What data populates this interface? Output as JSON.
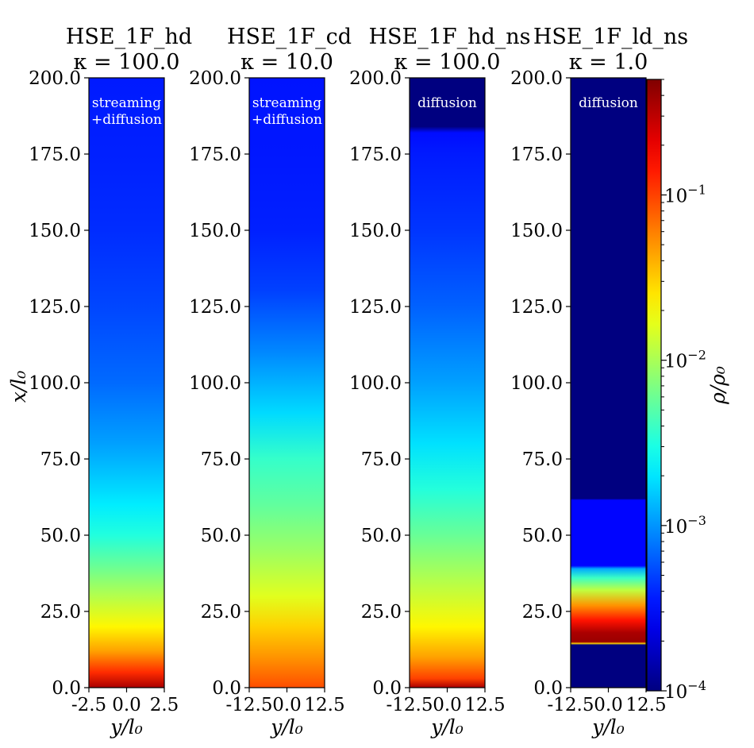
{
  "chart_data": {
    "type": "heatmap",
    "colormap": "jet",
    "panels": [
      {
        "title": "HSE_1F_hd",
        "subtitle": "κ = 100.0",
        "annotation": [
          "streaming",
          "+diffusion"
        ],
        "xlim": [
          -2.5,
          2.5
        ],
        "xticks": [
          "-2.5",
          "0.0",
          "2.5"
        ],
        "xlabel": "y/l₀",
        "ylim": [
          0,
          200
        ],
        "yticks": [
          "0.0",
          "25.0",
          "50.0",
          "75.0",
          "100.0",
          "125.0",
          "150.0",
          "175.0",
          "200.0"
        ],
        "ylabel": "x/l₀",
        "profile": [
          {
            "x": 0,
            "rho": 0.35
          },
          {
            "x": 5,
            "rho": 0.12
          },
          {
            "x": 12,
            "rho": 0.045
          },
          {
            "x": 20,
            "rho": 0.022
          },
          {
            "x": 30,
            "rho": 0.011
          },
          {
            "x": 40,
            "rho": 0.0058
          },
          {
            "x": 50,
            "rho": 0.0032
          },
          {
            "x": 60,
            "rho": 0.0021
          },
          {
            "x": 70,
            "rho": 0.0015
          },
          {
            "x": 80,
            "rho": 0.0011
          },
          {
            "x": 100,
            "rho": 0.0007
          },
          {
            "x": 125,
            "rho": 0.00052
          },
          {
            "x": 150,
            "rho": 0.00042
          },
          {
            "x": 175,
            "rho": 0.00038
          },
          {
            "x": 200,
            "rho": 0.00036
          }
        ]
      },
      {
        "title": "HSE_1F_cd",
        "subtitle": "κ = 10.0",
        "annotation": [
          "streaming",
          "+diffusion"
        ],
        "xlim": [
          -12.5,
          12.5
        ],
        "xticks": [
          "-12.5",
          "0.0",
          "12.5"
        ],
        "xlabel": "y/l₀",
        "ylim": [
          0,
          200
        ],
        "yticks": [
          "0.0",
          "25.0",
          "50.0",
          "75.0",
          "100.0",
          "125.0",
          "150.0",
          "175.0",
          "200.0"
        ],
        "profile": [
          {
            "x": 0,
            "rho": 0.09
          },
          {
            "x": 10,
            "rho": 0.05
          },
          {
            "x": 20,
            "rho": 0.03
          },
          {
            "x": 30,
            "rho": 0.016
          },
          {
            "x": 45,
            "rho": 0.009
          },
          {
            "x": 60,
            "rho": 0.0055
          },
          {
            "x": 75,
            "rho": 0.0038
          },
          {
            "x": 90,
            "rho": 0.0018
          },
          {
            "x": 110,
            "rho": 0.0009
          },
          {
            "x": 130,
            "rho": 0.0005
          },
          {
            "x": 150,
            "rho": 0.00038
          },
          {
            "x": 175,
            "rho": 0.00035
          },
          {
            "x": 200,
            "rho": 0.00034
          }
        ]
      },
      {
        "title": "HSE_1F_hd_ns",
        "subtitle": "κ = 100.0",
        "annotation": [
          "diffusion"
        ],
        "xlim": [
          -12.5,
          12.5
        ],
        "xticks": [
          "-12.5",
          "0.0",
          "12.5"
        ],
        "xlabel": "y/l₀",
        "ylim": [
          0,
          200
        ],
        "yticks": [
          "0.0",
          "25.0",
          "50.0",
          "75.0",
          "100.0",
          "125.0",
          "150.0",
          "175.0",
          "200.0"
        ],
        "profile": [
          {
            "x": 0,
            "rho": 0.35
          },
          {
            "x": 3,
            "rho": 0.1
          },
          {
            "x": 10,
            "rho": 0.045
          },
          {
            "x": 20,
            "rho": 0.022
          },
          {
            "x": 35,
            "rho": 0.011
          },
          {
            "x": 50,
            "rho": 0.0058
          },
          {
            "x": 65,
            "rho": 0.0033
          },
          {
            "x": 80,
            "rho": 0.0019
          },
          {
            "x": 100,
            "rho": 0.0011
          },
          {
            "x": 125,
            "rho": 0.00065
          },
          {
            "x": 150,
            "rho": 0.00045
          },
          {
            "x": 175,
            "rho": 0.00036
          },
          {
            "x": 182,
            "rho": 0.00032
          },
          {
            "x": 184,
            "rho": 0.0001
          },
          {
            "x": 200,
            "rho": 0.0001
          }
        ]
      },
      {
        "title": "HSE_1F_ld_ns",
        "subtitle": "κ = 1.0",
        "annotation": [
          "diffusion"
        ],
        "xlim": [
          -12.5,
          12.5
        ],
        "xticks": [
          "-12.5",
          "0.0",
          "12.5"
        ],
        "xlabel": "y/l₀",
        "ylim": [
          0,
          200
        ],
        "yticks": [
          "0.0",
          "25.0",
          "50.0",
          "75.0",
          "100.0",
          "125.0",
          "150.0",
          "175.0",
          "200.0"
        ],
        "profile": [
          {
            "x": 0,
            "rho": 0.0001
          },
          {
            "x": 14,
            "rho": 0.0001
          },
          {
            "x": 14.5,
            "rho": 0.03
          },
          {
            "x": 15,
            "rho": 0.4
          },
          {
            "x": 18,
            "rho": 0.35
          },
          {
            "x": 22,
            "rho": 0.15
          },
          {
            "x": 27,
            "rho": 0.05
          },
          {
            "x": 32,
            "rho": 0.012
          },
          {
            "x": 36,
            "rho": 0.004
          },
          {
            "x": 39,
            "rho": 0.0012
          },
          {
            "x": 40,
            "rho": 0.0003
          },
          {
            "x": 61.5,
            "rho": 0.0003
          },
          {
            "x": 62,
            "rho": 0.0001
          },
          {
            "x": 200,
            "rho": 0.0001
          }
        ]
      }
    ],
    "colorbar": {
      "label": "ρ/ρ₀",
      "scale": "log",
      "range": [
        0.0001,
        0.5
      ],
      "ticks": [
        {
          "value": 0.0001,
          "label": "10−4"
        },
        {
          "value": 0.001,
          "label": "10−3"
        },
        {
          "value": 0.01,
          "label": "10−2"
        },
        {
          "value": 0.1,
          "label": "10−1"
        }
      ]
    }
  }
}
